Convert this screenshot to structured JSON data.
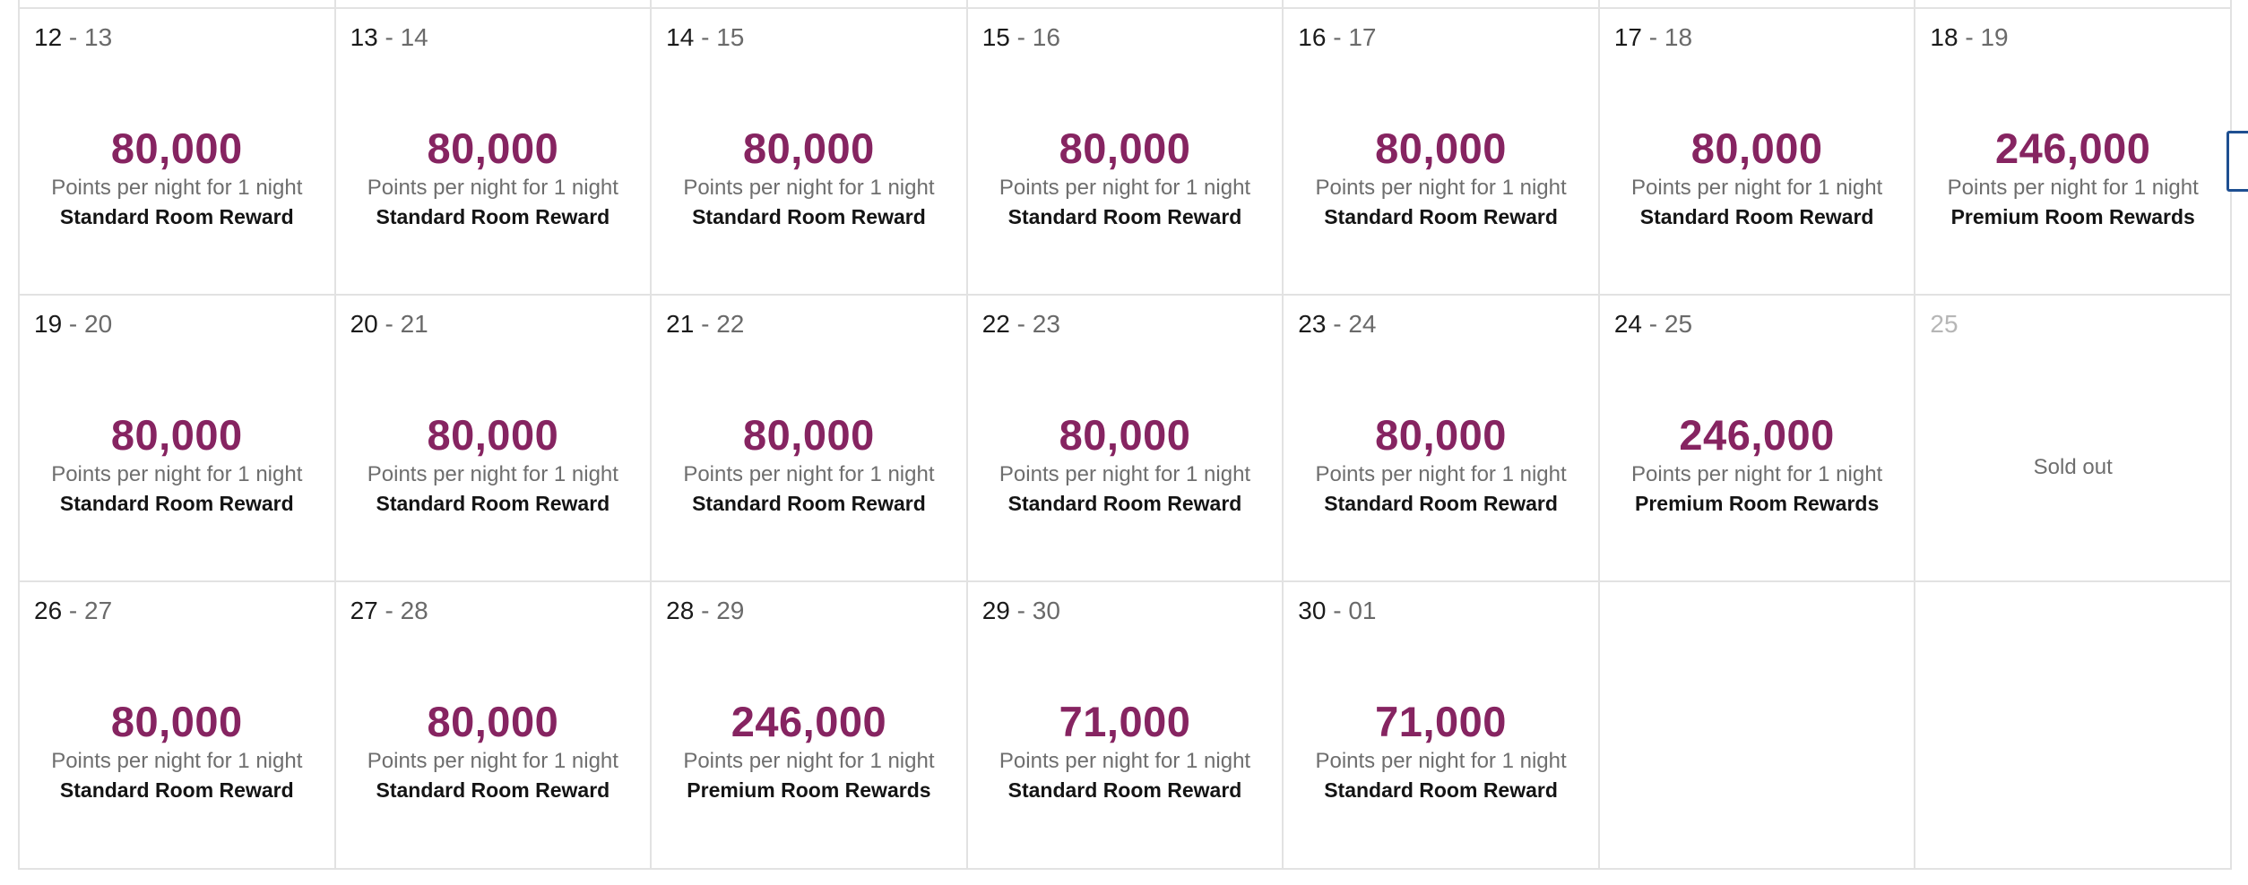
{
  "calendar": {
    "weeks": [
      [
        {
          "start": "12",
          "end": "13",
          "points": "80,000",
          "per_night": "Points per night for 1 night",
          "reward": "Standard Room Reward"
        },
        {
          "start": "13",
          "end": "14",
          "points": "80,000",
          "per_night": "Points per night for 1 night",
          "reward": "Standard Room Reward"
        },
        {
          "start": "14",
          "end": "15",
          "points": "80,000",
          "per_night": "Points per night for 1 night",
          "reward": "Standard Room Reward"
        },
        {
          "start": "15",
          "end": "16",
          "points": "80,000",
          "per_night": "Points per night for 1 night",
          "reward": "Standard Room Reward"
        },
        {
          "start": "16",
          "end": "17",
          "points": "80,000",
          "per_night": "Points per night for 1 night",
          "reward": "Standard Room Reward"
        },
        {
          "start": "17",
          "end": "18",
          "points": "80,000",
          "per_night": "Points per night for 1 night",
          "reward": "Standard Room Reward"
        },
        {
          "start": "18",
          "end": "19",
          "points": "246,000",
          "per_night": "Points per night for 1 night",
          "reward": "Premium Room Rewards"
        }
      ],
      [
        {
          "start": "19",
          "end": "20",
          "points": "80,000",
          "per_night": "Points per night for 1 night",
          "reward": "Standard Room Reward"
        },
        {
          "start": "20",
          "end": "21",
          "points": "80,000",
          "per_night": "Points per night for 1 night",
          "reward": "Standard Room Reward"
        },
        {
          "start": "21",
          "end": "22",
          "points": "80,000",
          "per_night": "Points per night for 1 night",
          "reward": "Standard Room Reward"
        },
        {
          "start": "22",
          "end": "23",
          "points": "80,000",
          "per_night": "Points per night for 1 night",
          "reward": "Standard Room Reward"
        },
        {
          "start": "23",
          "end": "24",
          "points": "80,000",
          "per_night": "Points per night for 1 night",
          "reward": "Standard Room Reward"
        },
        {
          "start": "24",
          "end": "25",
          "points": "246,000",
          "per_night": "Points per night for 1 night",
          "reward": "Premium Room Rewards"
        },
        {
          "start": "25",
          "status": "Sold out"
        }
      ],
      [
        {
          "start": "26",
          "end": "27",
          "points": "80,000",
          "per_night": "Points per night for 1 night",
          "reward": "Standard Room Reward"
        },
        {
          "start": "27",
          "end": "28",
          "points": "80,000",
          "per_night": "Points per night for 1 night",
          "reward": "Standard Room Reward"
        },
        {
          "start": "28",
          "end": "29",
          "points": "246,000",
          "per_night": "Points per night for 1 night",
          "reward": "Premium Room Rewards"
        },
        {
          "start": "29",
          "end": "30",
          "points": "71,000",
          "per_night": "Points per night for 1 night",
          "reward": "Standard Room Reward"
        },
        {
          "start": "30",
          "end": "01",
          "points": "71,000",
          "per_night": "Points per night for 1 night",
          "reward": "Standard Room Reward"
        },
        {
          "empty": true
        },
        {
          "empty": true
        }
      ]
    ]
  },
  "colors": {
    "points": "#862461",
    "grid_line": "#e2e2e2",
    "nav_accent": "#1e4f91"
  }
}
